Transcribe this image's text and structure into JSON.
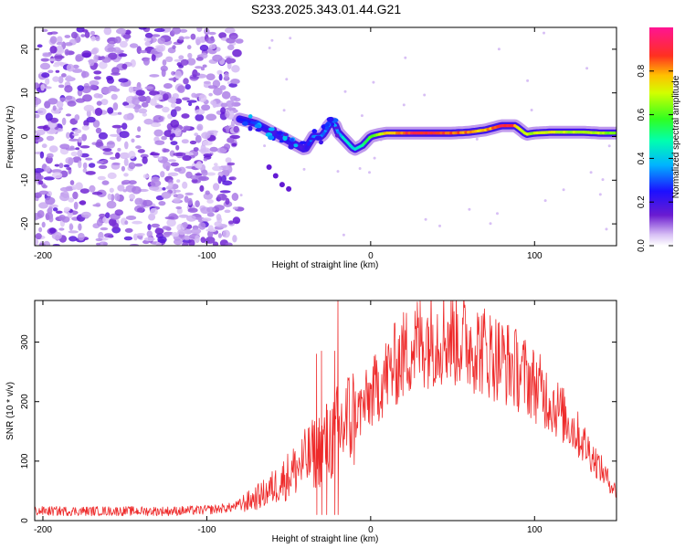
{
  "title": "S233.2025.343.01.44.G21",
  "chart_data": [
    {
      "type": "heatmap",
      "name": "spectrogram",
      "xlabel": "Height of straight line (km)",
      "ylabel": "Frequency (Hz)",
      "xlim": [
        -205,
        150
      ],
      "ylim": [
        -25,
        25
      ],
      "xticks": [
        -200,
        -100,
        0,
        100
      ],
      "yticks": [
        -20,
        -10,
        0,
        10,
        20
      ],
      "noise_region_x": [
        -205,
        -80
      ],
      "ridge": {
        "x": [
          -80,
          -70,
          -60,
          -50,
          -45,
          -40,
          -35,
          -30,
          -28,
          -25,
          -22,
          -20,
          -15,
          -10,
          -5,
          0,
          5,
          10,
          20,
          30,
          40,
          50,
          60,
          70,
          80,
          85,
          88,
          90,
          95,
          100,
          110,
          120,
          130,
          140,
          150
        ],
        "freq": [
          4,
          3,
          1,
          -1,
          -2,
          -3,
          0,
          0,
          1,
          3,
          3,
          1,
          -1,
          -3,
          -2,
          0,
          0.5,
          0.8,
          0.8,
          0.8,
          0.8,
          0.8,
          1,
          1.5,
          2.5,
          2.5,
          2.5,
          2,
          0.5,
          0.8,
          1,
          1,
          1,
          0.8,
          0.8
        ],
        "amp": [
          0.25,
          0.3,
          0.2,
          0.25,
          0.2,
          0.2,
          0.35,
          0.4,
          0.3,
          0.45,
          0.4,
          0.35,
          0.5,
          0.45,
          0.5,
          0.6,
          0.7,
          0.8,
          0.9,
          0.95,
          0.95,
          0.9,
          0.85,
          0.8,
          0.95,
          0.95,
          0.9,
          0.7,
          0.75,
          0.7,
          0.75,
          0.7,
          0.7,
          0.7,
          0.65
        ]
      },
      "tail": {
        "x": [
          -62,
          -58,
          -54,
          -50
        ],
        "freq": [
          -7,
          -9,
          -11,
          -12
        ]
      }
    },
    {
      "type": "line",
      "name": "snr",
      "xlabel": "Height of straight line (km)",
      "ylabel": "SNR (10 * v/v)",
      "xlim": [
        -205,
        150
      ],
      "ylim": [
        0,
        370
      ],
      "xticks": [
        -200,
        -100,
        0,
        100
      ],
      "yticks": [
        0,
        100,
        200,
        300
      ],
      "color": "#ee2b2b",
      "envelope": {
        "x": [
          -205,
          -180,
          -150,
          -120,
          -100,
          -85,
          -75,
          -65,
          -55,
          -45,
          -35,
          -25,
          -15,
          -5,
          5,
          15,
          25,
          35,
          45,
          55,
          65,
          75,
          85,
          95,
          105,
          115,
          125,
          135,
          145,
          150
        ],
        "snr": [
          16,
          16,
          16,
          16,
          18,
          22,
          32,
          45,
          65,
          88,
          112,
          135,
          165,
          190,
          228,
          262,
          292,
          308,
          312,
          305,
          292,
          278,
          262,
          242,
          215,
          185,
          150,
          110,
          68,
          48
        ]
      },
      "spikes": [
        {
          "x": -33,
          "snr": 280
        },
        {
          "x": -30,
          "snr": 285
        },
        {
          "x": -20,
          "snr": 370
        },
        {
          "x": -22,
          "snr": 285
        },
        {
          "x": -27,
          "snr": 195
        }
      ]
    },
    {
      "type": "colorbar",
      "name": "colorbar",
      "label": "Normalized spectral amplitude",
      "range": [
        0,
        1
      ],
      "ticks": [
        "0.0",
        "0.2",
        "0.4",
        "0.6",
        "0.8"
      ],
      "tick_values": [
        0,
        0.2,
        0.4,
        0.6,
        0.8
      ]
    }
  ]
}
